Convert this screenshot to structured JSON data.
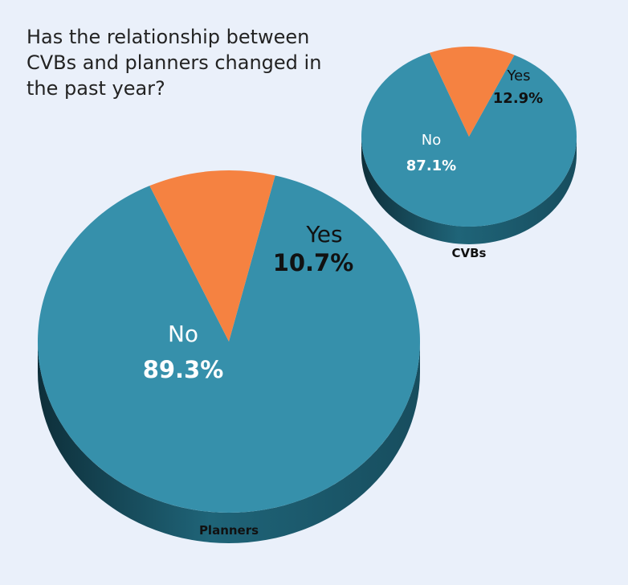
{
  "title_lines": [
    "Has the relationship between",
    "CVBs and planners changed in",
    "the past year?"
  ],
  "colors": {
    "no": "#3690ab",
    "yes": "#f58241",
    "depth": "#1e5d70"
  },
  "chart_data": [
    {
      "type": "pie",
      "name": "Planners",
      "slices": [
        {
          "label": "No",
          "value": 89.3,
          "display": "89.3%"
        },
        {
          "label": "Yes",
          "value": 10.7,
          "display": "10.7%"
        }
      ]
    },
    {
      "type": "pie",
      "name": "CVBs",
      "slices": [
        {
          "label": "No",
          "value": 87.1,
          "display": "87.1%"
        },
        {
          "label": "Yes",
          "value": 12.9,
          "display": "12.9%"
        }
      ]
    }
  ]
}
